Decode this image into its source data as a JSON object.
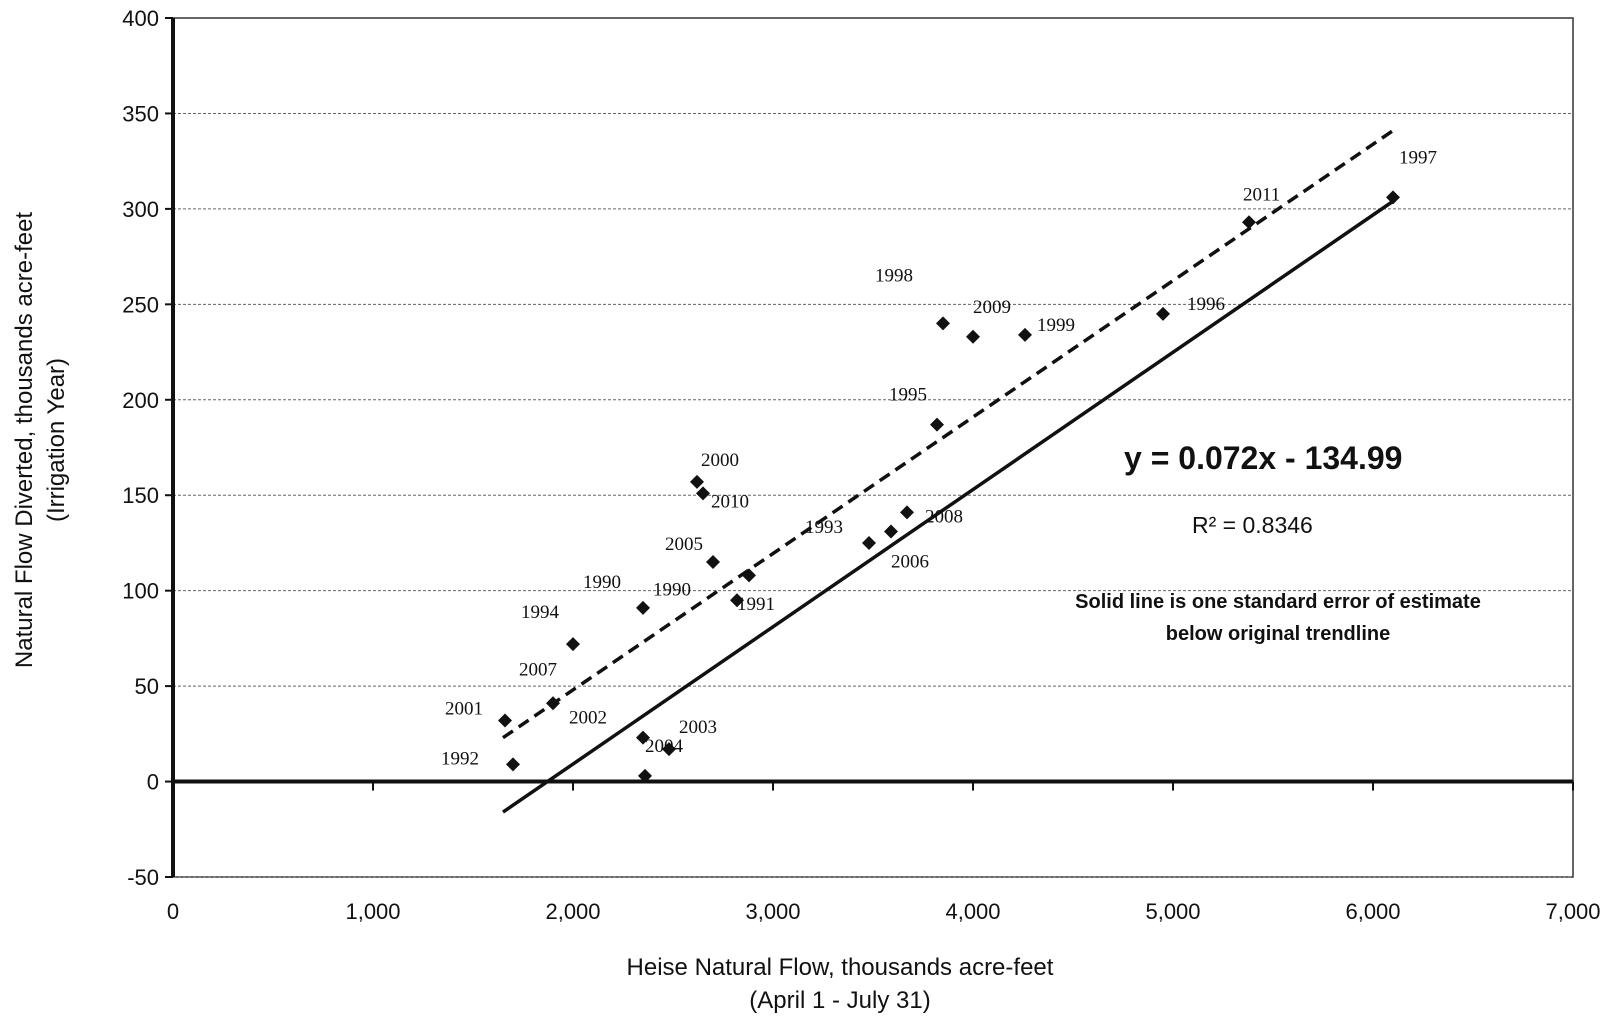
{
  "chart_data": {
    "type": "scatter",
    "xlabel": [
      "Heise Natural Flow, thousands acre-feet",
      "(April 1 - July 31)"
    ],
    "ylabel": [
      "Natural Flow Diverted, thousands acre-feet",
      "(Irrigation Year)"
    ],
    "xlim": [
      0,
      7000
    ],
    "ylim": [
      -50,
      400
    ],
    "x_ticks": [
      0,
      1000,
      2000,
      3000,
      4000,
      5000,
      6000,
      7000
    ],
    "x_tick_labels": [
      "0",
      "1,000",
      "2,000",
      "3,000",
      "4,000",
      "5,000",
      "6,000",
      "7,000"
    ],
    "y_ticks": [
      -50,
      0,
      50,
      100,
      150,
      200,
      250,
      300,
      350,
      400
    ],
    "y_tick_labels": [
      "-50",
      "0",
      "50",
      "100",
      "150",
      "200",
      "250",
      "300",
      "350",
      "400"
    ],
    "grid": "horizontal dashed",
    "marker": "diamond",
    "points": [
      {
        "label": "1992",
        "x": 1700,
        "y": 9
      },
      {
        "label": "2001",
        "x": 1660,
        "y": 32
      },
      {
        "label": "2007",
        "x": 1900,
        "y": 41
      },
      {
        "label": "1994",
        "x": 2000,
        "y": 72
      },
      {
        "label": "1990",
        "x": 2350,
        "y": 91
      },
      {
        "label": "2002",
        "x": 2350,
        "y": 23
      },
      {
        "label": "2004",
        "x": 2360,
        "y": 3
      },
      {
        "label": "2003",
        "x": 2480,
        "y": 17
      },
      {
        "label": "2000",
        "x": 2620,
        "y": 157
      },
      {
        "label": "2010",
        "x": 2650,
        "y": 151
      },
      {
        "label": "2005",
        "x": 2700,
        "y": 115
      },
      {
        "label": "1990",
        "x": 2880,
        "y": 108
      },
      {
        "label": "1991",
        "x": 2820,
        "y": 95
      },
      {
        "label": "1993",
        "x": 3480,
        "y": 125
      },
      {
        "label": "2006",
        "x": 3590,
        "y": 131
      },
      {
        "label": "2008",
        "x": 3670,
        "y": 141
      },
      {
        "label": "1995",
        "x": 3820,
        "y": 187
      },
      {
        "label": "1998",
        "x": 3850,
        "y": 240
      },
      {
        "label": "2009",
        "x": 4000,
        "y": 233
      },
      {
        "label": "1999",
        "x": 4260,
        "y": 234
      },
      {
        "label": "1996",
        "x": 4950,
        "y": 245
      },
      {
        "label": "2011",
        "x": 5380,
        "y": 293
      },
      {
        "label": "1997",
        "x": 6100,
        "y": 306
      }
    ],
    "trendlines": [
      {
        "style": "dashed",
        "x": [
          1650,
          6100
        ],
        "y": [
          23,
          341
        ]
      },
      {
        "style": "solid",
        "x": [
          1650,
          6100
        ],
        "y": [
          -16,
          304
        ]
      }
    ],
    "annotations": {
      "equation": "y = 0.072x - 134.99",
      "r_squared": "R² = 0.8346",
      "note": [
        "Solid line is one standard error of estimate",
        "below original trendline"
      ]
    }
  }
}
